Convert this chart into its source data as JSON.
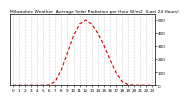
{
  "title": "Milwaukee Weather  Average Solar Radiation per Hour W/m2  (Last 24 Hours)",
  "title_fontsize": 3.2,
  "background_color": "#ffffff",
  "plot_bg_color": "#ffffff",
  "line_color": "#dd0000",
  "line_width": 0.8,
  "grid_color": "#aaaaaa",
  "grid_style": ":",
  "x_hours": [
    0,
    1,
    2,
    3,
    4,
    5,
    6,
    7,
    8,
    9,
    10,
    11,
    12,
    13,
    14,
    15,
    16,
    17,
    18,
    19,
    20,
    21,
    22,
    23
  ],
  "y_values": [
    0,
    0,
    0,
    0,
    0,
    0,
    2,
    30,
    120,
    250,
    380,
    470,
    500,
    470,
    400,
    310,
    200,
    100,
    30,
    5,
    0,
    0,
    0,
    0
  ],
  "ylim": [
    0,
    550
  ],
  "yticks": [
    0,
    100,
    200,
    300,
    400,
    500
  ],
  "ylabel_fontsize": 3.0,
  "xlabel_fontsize": 3.0,
  "tick_color": "#000000",
  "text_color": "#000000",
  "border_color": "#000000"
}
